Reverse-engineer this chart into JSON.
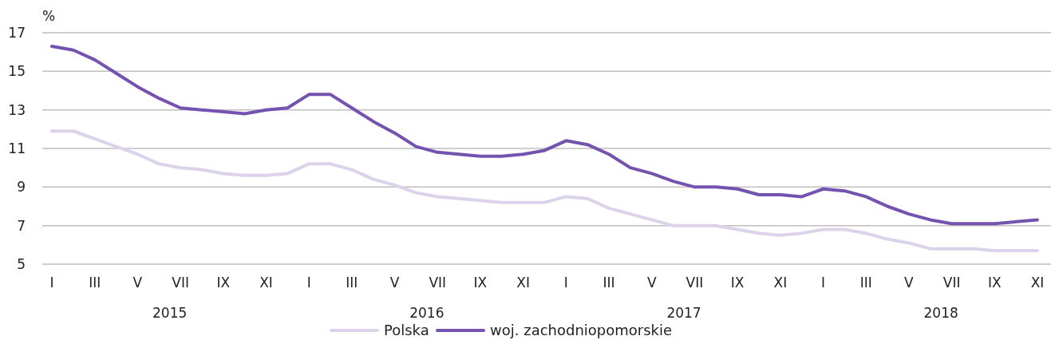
{
  "chart_data": {
    "type": "line",
    "ylabel": "%",
    "categories": [
      "I",
      null,
      "III",
      null,
      "V",
      null,
      "VII",
      null,
      "IX",
      null,
      "XI",
      null,
      "I",
      null,
      "III",
      null,
      "V",
      null,
      "VII",
      null,
      "IX",
      null,
      "XI",
      null,
      "I",
      null,
      "III",
      null,
      "V",
      null,
      "VII",
      null,
      "IX",
      null,
      "XI",
      null,
      "I",
      null,
      "III",
      null,
      "V",
      null,
      "VII",
      null,
      "IX",
      null,
      "XI"
    ],
    "annotations": [
      "2015",
      "2016",
      "2017",
      "2018"
    ],
    "series": [
      {
        "name": "Polska",
        "color": "#dcd3ea",
        "values": [
          11.9,
          11.9,
          11.5,
          11.1,
          10.7,
          10.2,
          10.0,
          9.9,
          9.7,
          9.6,
          9.6,
          9.7,
          10.2,
          10.2,
          9.9,
          9.4,
          9.1,
          8.7,
          8.5,
          8.4,
          8.3,
          8.2,
          8.2,
          8.2,
          8.5,
          8.4,
          7.9,
          7.6,
          7.3,
          7.0,
          7.0,
          7.0,
          6.8,
          6.6,
          6.5,
          6.6,
          6.8,
          6.8,
          6.6,
          6.3,
          6.1,
          5.8,
          5.8,
          5.8,
          5.7,
          5.7,
          5.7
        ]
      },
      {
        "name": "woj. zachodniopomorskie",
        "color": "#7452b0",
        "values": [
          16.3,
          16.1,
          15.6,
          14.9,
          14.2,
          13.6,
          13.1,
          13.0,
          12.9,
          12.8,
          13.0,
          13.1,
          13.8,
          13.8,
          13.1,
          12.4,
          11.8,
          11.1,
          10.8,
          10.7,
          10.6,
          10.6,
          10.7,
          10.9,
          11.4,
          11.2,
          10.7,
          10.0,
          9.7,
          9.3,
          9.0,
          9.0,
          8.9,
          8.6,
          8.6,
          8.5,
          8.9,
          8.8,
          8.5,
          8.0,
          7.6,
          7.3,
          7.1,
          7.1,
          7.1,
          7.2,
          7.3
        ]
      }
    ],
    "ylim": [
      5,
      17
    ],
    "yticks": [
      5,
      7,
      9,
      11,
      13,
      15,
      17
    ],
    "grid": "y",
    "legend": "bottom",
    "line_style": "solid"
  }
}
